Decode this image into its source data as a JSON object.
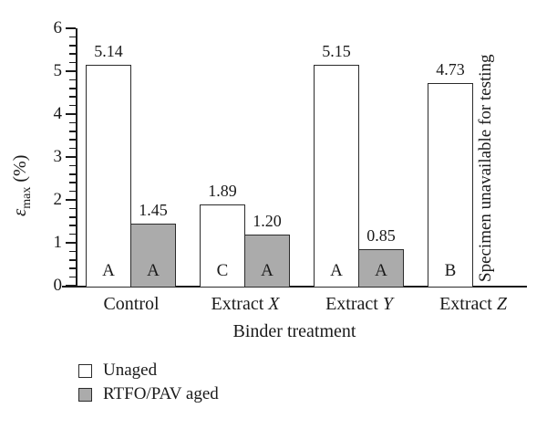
{
  "colors": {
    "axis": "#1a1a1a",
    "text": "#1a1a1a",
    "bar_border": "#2b2b2b",
    "unaged_fill": "#ffffff",
    "aged_fill": "#ababab",
    "background": "#ffffff"
  },
  "chart_data": {
    "type": "bar",
    "title": "",
    "xlabel": "Binder treatment",
    "ylabel": "ε_max (%)",
    "ylabel_parts": {
      "symbol": "ε",
      "subscript": "max",
      "unit": "(%)"
    },
    "ylim": [
      0,
      6
    ],
    "yticks": [
      0,
      1,
      2,
      3,
      4,
      5,
      6
    ],
    "minor_tick_step": 0.2,
    "grid": false,
    "legend_position": "bottom-left",
    "categories": [
      {
        "text": "Control",
        "italic_suffix": ""
      },
      {
        "text": "Extract",
        "italic_suffix": "X"
      },
      {
        "text": "Extract",
        "italic_suffix": "Y"
      },
      {
        "text": "Extract",
        "italic_suffix": "Z"
      }
    ],
    "series": [
      {
        "name": "Unaged",
        "fill": "#ffffff",
        "values": [
          5.14,
          1.89,
          5.15,
          4.73
        ],
        "value_labels": [
          "5.14",
          "1.89",
          "5.15",
          "4.73"
        ],
        "group_letters": [
          "A",
          "C",
          "A",
          "B"
        ]
      },
      {
        "name": "RTFO/PAV aged",
        "fill": "#ababab",
        "values": [
          1.45,
          1.2,
          0.85,
          null
        ],
        "value_labels": [
          "1.45",
          "1.20",
          "0.85",
          null
        ],
        "group_letters": [
          "A",
          "A",
          "A",
          null
        ]
      }
    ],
    "annotation": "Specimen unavailable for testing"
  }
}
